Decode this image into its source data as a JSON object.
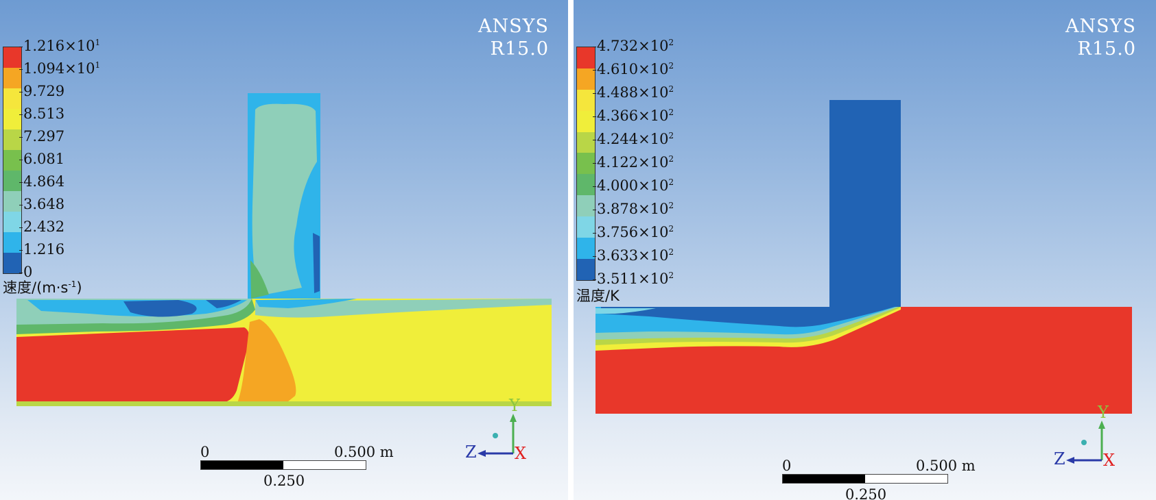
{
  "left": {
    "brand": [
      "ANSYS",
      "R15.0"
    ],
    "legend": {
      "title": "速度/(m·s",
      "title_sup": "-1",
      "title_tail": ")",
      "labels": [
        {
          "m": "1.216×10",
          "e": "1"
        },
        {
          "m": "1.094×10",
          "e": "1"
        },
        {
          "m": "9.729",
          "e": ""
        },
        {
          "m": "8.513",
          "e": ""
        },
        {
          "m": "7.297",
          "e": ""
        },
        {
          "m": "6.081",
          "e": ""
        },
        {
          "m": "4.864",
          "e": ""
        },
        {
          "m": "3.648",
          "e": ""
        },
        {
          "m": "2.432",
          "e": ""
        },
        {
          "m": "1.216",
          "e": ""
        },
        {
          "m": "0",
          "e": ""
        }
      ],
      "colors": [
        "#e8372a",
        "#f5a623",
        "#f5e63c",
        "#f0ee3a",
        "#b9d647",
        "#78c04d",
        "#5fb76a",
        "#8fcfb9",
        "#7fd6e6",
        "#2fb4ea",
        "#2163b4"
      ]
    },
    "scalebar": {
      "zero": "0",
      "mid": "0.250",
      "max": "0.500 m"
    },
    "axes": {
      "y": "Y",
      "z": "Z",
      "x": "X"
    }
  },
  "right": {
    "brand": [
      "ANSYS",
      "R15.0"
    ],
    "legend": {
      "title": "温度/K",
      "labels": [
        {
          "m": "4.732×10",
          "e": "2"
        },
        {
          "m": "4.610×10",
          "e": "2"
        },
        {
          "m": "4.488×10",
          "e": "2"
        },
        {
          "m": "4.366×10",
          "e": "2"
        },
        {
          "m": "4.244×10",
          "e": "2"
        },
        {
          "m": "4.122×10",
          "e": "2"
        },
        {
          "m": "4.000×10",
          "e": "2"
        },
        {
          "m": "3.878×10",
          "e": "2"
        },
        {
          "m": "3.756×10",
          "e": "2"
        },
        {
          "m": "3.633×10",
          "e": "2"
        },
        {
          "m": "3.511×10",
          "e": "2"
        }
      ],
      "colors": [
        "#e8372a",
        "#f5a623",
        "#f5e63c",
        "#f0ee3a",
        "#b9d647",
        "#78c04d",
        "#5fb76a",
        "#8fcfb9",
        "#7fd6e6",
        "#2fb4ea",
        "#2163b4"
      ]
    },
    "scalebar": {
      "zero": "0",
      "mid": "0.250",
      "max": "0.500 m"
    },
    "axes": {
      "y": "Y",
      "z": "Z",
      "x": "X"
    }
  }
}
